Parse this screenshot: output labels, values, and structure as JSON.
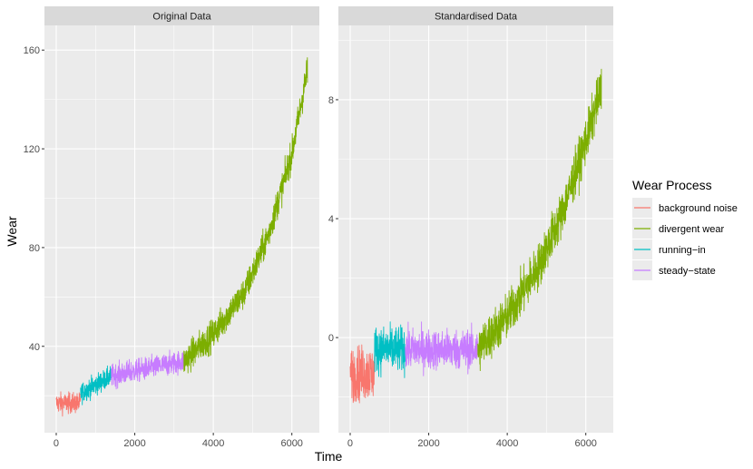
{
  "chart_data": {
    "type": "line",
    "xlabel": "Time",
    "ylabel": "Wear",
    "grid": true,
    "legend": {
      "title": "Wear Process",
      "placement": "right",
      "entries": [
        {
          "name": "background noise",
          "color": "#F8766D"
        },
        {
          "name": "divergent wear",
          "color": "#7CAE00"
        },
        {
          "name": "running−in",
          "color": "#00BFC4"
        },
        {
          "name": "steady−state",
          "color": "#C77CFF"
        }
      ]
    },
    "panels": [
      {
        "strip": "Original Data",
        "xlim": [
          -300,
          6700
        ],
        "ylim": [
          5,
          170
        ],
        "x_ticks": [
          0,
          2000,
          4000,
          6000
        ],
        "x_tick_labels": [
          "0",
          "2000",
          "4000",
          "6000"
        ],
        "y_ticks": [
          40,
          80,
          120,
          160
        ],
        "y_tick_labels": [
          "40",
          "80",
          "120",
          "160"
        ],
        "segments": [
          {
            "series": "background noise",
            "x_range": [
              0,
              620
            ],
            "base": [
              17,
              17
            ],
            "noise": 4
          },
          {
            "series": "running−in",
            "x_range": [
              620,
              1400
            ],
            "base": [
              21,
              28
            ],
            "noise": 4
          },
          {
            "series": "steady−state",
            "x_range": [
              1400,
              3250
            ],
            "base": [
              28,
              34
            ],
            "noise": 4.5
          },
          {
            "series": "divergent wear",
            "x_range": [
              3250,
              6400
            ],
            "points": [
              [
                3250,
                34
              ],
              [
                4000,
                45
              ],
              [
                4800,
                62
              ],
              [
                5400,
                85
              ],
              [
                6000,
                118
              ],
              [
                6400,
                152
              ]
            ],
            "noise": 6
          }
        ]
      },
      {
        "strip": "Standardised Data",
        "xlim": [
          -300,
          6700
        ],
        "ylim": [
          -3.2,
          10.5
        ],
        "x_ticks": [
          0,
          2000,
          4000,
          6000
        ],
        "x_tick_labels": [
          "0",
          "2000",
          "4000",
          "6000"
        ],
        "y_ticks": [
          0,
          4,
          8
        ],
        "y_tick_labels": [
          "0",
          "4",
          "8"
        ],
        "segments": [
          {
            "series": "background noise",
            "x_range": [
              0,
              620
            ],
            "base": [
              -1.2,
              -1.2
            ],
            "noise": 0.9
          },
          {
            "series": "running−in",
            "x_range": [
              620,
              1400
            ],
            "base": [
              -0.4,
              -0.4
            ],
            "noise": 0.75
          },
          {
            "series": "steady−state",
            "x_range": [
              1400,
              3250
            ],
            "base": [
              -0.4,
              -0.4
            ],
            "noise": 0.65
          },
          {
            "series": "divergent wear",
            "x_range": [
              3250,
              6400
            ],
            "points": [
              [
                3250,
                -0.4
              ],
              [
                4000,
                0.7
              ],
              [
                4800,
                2.4
              ],
              [
                5400,
                4.2
              ],
              [
                6000,
                6.6
              ],
              [
                6400,
                8.4
              ]
            ],
            "noise": 0.75
          }
        ]
      }
    ]
  }
}
